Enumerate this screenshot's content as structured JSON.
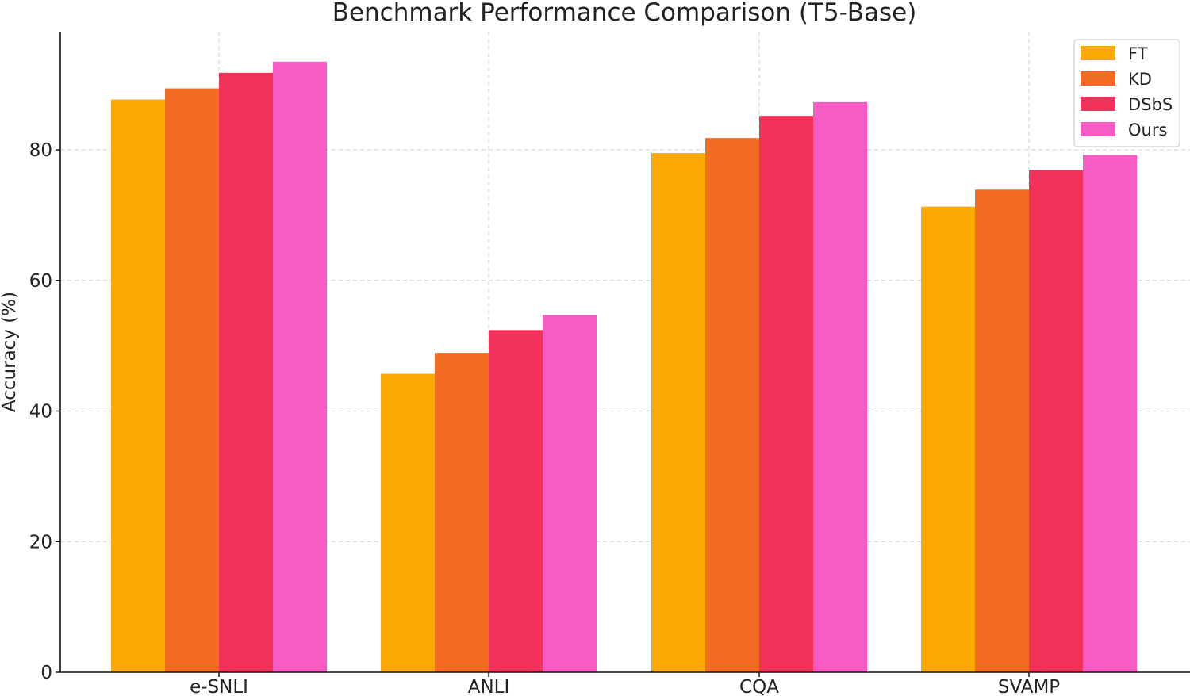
{
  "chart_data": {
    "type": "bar",
    "title": "Benchmark Performance Comparison (T5-Base)",
    "xlabel": "",
    "ylabel": "Accuracy (%)",
    "categories": [
      "e-SNLI",
      "ANLI",
      "CQA",
      "SVAMP"
    ],
    "series": [
      {
        "name": "FT",
        "color": "#fbaa05",
        "values": [
          87.7,
          45.7,
          79.5,
          71.3
        ]
      },
      {
        "name": "KD",
        "color": "#f36b23",
        "values": [
          89.4,
          48.9,
          81.8,
          73.9
        ]
      },
      {
        "name": "DSbS",
        "color": "#f2325a",
        "values": [
          91.8,
          52.4,
          85.2,
          76.9
        ]
      },
      {
        "name": "Ours",
        "color": "#f75bc4",
        "values": [
          93.5,
          54.7,
          87.3,
          79.2
        ]
      }
    ],
    "ylim": [
      0,
      100
    ],
    "yticks": [
      0,
      20,
      40,
      60,
      80
    ],
    "ytick_labels": [
      "0",
      "20",
      "40",
      "60",
      "80"
    ],
    "grid": true,
    "legend_position": "top-right"
  }
}
